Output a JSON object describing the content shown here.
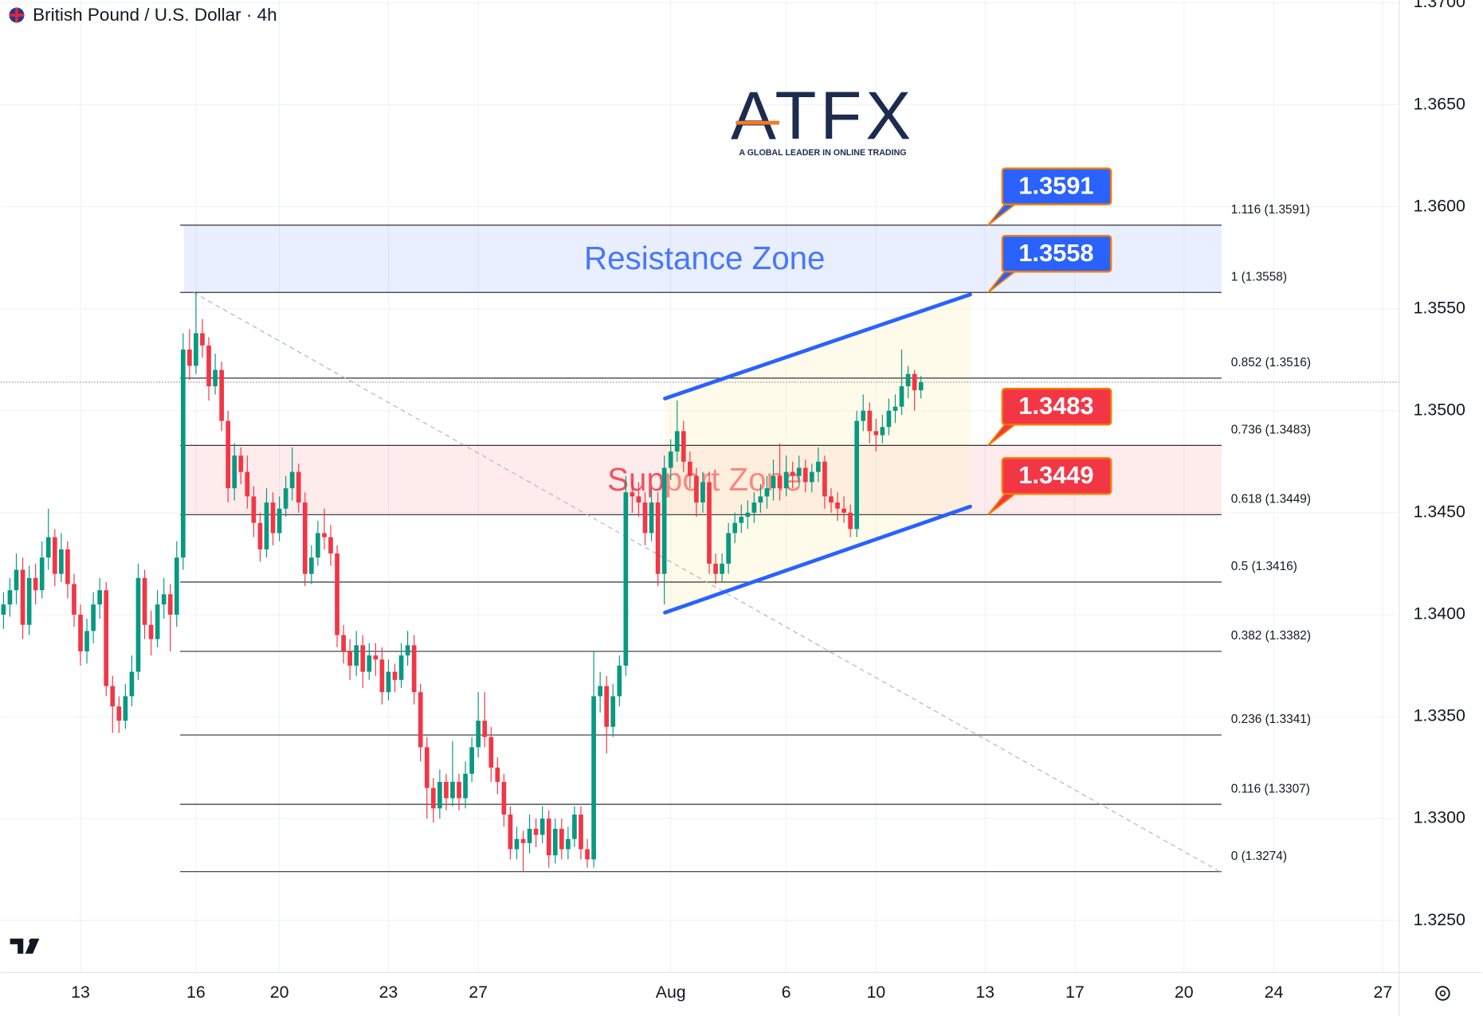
{
  "chart_data": {
    "type": "candlestick",
    "title": "British Pound / U.S. Dollar · 4h",
    "logo": {
      "name": "ATFX",
      "tagline": "A GLOBAL LEADER IN ONLINE TRADING"
    },
    "up_color": "#089981",
    "down_color": "#f23645",
    "grid": true,
    "ylim": [
      1.32245,
      1.37014
    ],
    "yticks": [
      {
        "value": 1.325,
        "label": "1.3250"
      },
      {
        "value": 1.33,
        "label": "1.3300"
      },
      {
        "value": 1.335,
        "label": "1.3350"
      },
      {
        "value": 1.34,
        "label": "1.3400"
      },
      {
        "value": 1.345,
        "label": "1.3450"
      },
      {
        "value": 1.35,
        "label": "1.3500"
      },
      {
        "value": 1.355,
        "label": "1.3550"
      },
      {
        "value": 1.36,
        "label": "1.3600"
      },
      {
        "value": 1.365,
        "label": "1.3650"
      },
      {
        "value": 1.37,
        "label": "1.3700"
      }
    ],
    "categories": [
      null,
      null,
      null,
      null,
      null,
      null,
      null,
      null,
      null,
      null,
      null,
      null,
      "13",
      null,
      null,
      null,
      null,
      null,
      null,
      null,
      null,
      null,
      null,
      null,
      null,
      null,
      null,
      null,
      null,
      null,
      "16",
      null,
      null,
      null,
      null,
      null,
      null,
      null,
      null,
      null,
      null,
      null,
      null,
      "20",
      null,
      null,
      null,
      null,
      null,
      null,
      null,
      null,
      null,
      null,
      null,
      null,
      null,
      null,
      null,
      null,
      "23",
      null,
      null,
      null,
      null,
      null,
      null,
      null,
      null,
      null,
      null,
      null,
      null,
      null,
      "27",
      null,
      null,
      null,
      null,
      null,
      null,
      null,
      null,
      null,
      null,
      null,
      null,
      null,
      null,
      null,
      null,
      null,
      null,
      null,
      null,
      null,
      null,
      null,
      null,
      null,
      null,
      null,
      null,
      null,
      "Aug",
      null,
      null,
      null,
      null,
      null,
      null,
      null,
      null,
      null,
      null,
      null,
      null,
      null,
      null,
      null,
      null,
      null,
      "6",
      null,
      null,
      null,
      null,
      null,
      null,
      null,
      null,
      null,
      null,
      null,
      null,
      null,
      "10",
      null,
      null,
      null,
      null,
      null,
      null,
      null,
      null,
      null,
      null,
      null,
      null,
      null,
      null,
      null,
      null,
      "13",
      null,
      null,
      null,
      null,
      null,
      null,
      null,
      null,
      null,
      null,
      null,
      null,
      null,
      "17",
      null,
      null,
      null,
      null,
      null,
      null,
      null,
      null,
      null,
      null,
      null,
      null,
      null,
      null,
      null,
      null,
      "20",
      null,
      null,
      null,
      null,
      null,
      null,
      null,
      null,
      null,
      null,
      null,
      null,
      null,
      "24",
      null,
      null,
      null,
      null,
      null,
      null,
      null,
      null,
      null,
      null,
      null,
      null,
      null,
      null,
      null,
      null,
      "27",
      null,
      null
    ],
    "ohlc": [
      [
        1.34,
        1.3411,
        1.3393,
        1.3405
      ],
      [
        1.3405,
        1.3418,
        1.3399,
        1.3412
      ],
      [
        1.3412,
        1.343,
        1.3405,
        1.3422
      ],
      [
        1.3422,
        1.3428,
        1.3388,
        1.3395
      ],
      [
        1.3395,
        1.3424,
        1.339,
        1.3418
      ],
      [
        1.3418,
        1.3425,
        1.3405,
        1.3412
      ],
      [
        1.3412,
        1.3436,
        1.3408,
        1.3428
      ],
      [
        1.3428,
        1.3452,
        1.3422,
        1.3438
      ],
      [
        1.3438,
        1.3442,
        1.3414,
        1.342
      ],
      [
        1.342,
        1.344,
        1.3416,
        1.3432
      ],
      [
        1.3432,
        1.3436,
        1.3408,
        1.3415
      ],
      [
        1.3415,
        1.342,
        1.3394,
        1.34
      ],
      [
        1.34,
        1.3405,
        1.3375,
        1.3382
      ],
      [
        1.3382,
        1.3398,
        1.3376,
        1.3392
      ],
      [
        1.3392,
        1.3411,
        1.3386,
        1.3405
      ],
      [
        1.3405,
        1.3418,
        1.3398,
        1.3412
      ],
      [
        1.3412,
        1.3416,
        1.336,
        1.3365
      ],
      [
        1.3365,
        1.337,
        1.3342,
        1.3355
      ],
      [
        1.3355,
        1.336,
        1.3342,
        1.3348
      ],
      [
        1.3348,
        1.3366,
        1.3344,
        1.336
      ],
      [
        1.336,
        1.338,
        1.3355,
        1.3372
      ],
      [
        1.3372,
        1.3425,
        1.3368,
        1.3418
      ],
      [
        1.3418,
        1.3422,
        1.3388,
        1.3395
      ],
      [
        1.3395,
        1.3402,
        1.338,
        1.3388
      ],
      [
        1.3388,
        1.3412,
        1.3384,
        1.3405
      ],
      [
        1.3405,
        1.3418,
        1.3398,
        1.341
      ],
      [
        1.341,
        1.3415,
        1.3382,
        1.34
      ],
      [
        1.34,
        1.3436,
        1.3394,
        1.3428
      ],
      [
        1.3428,
        1.3538,
        1.3422,
        1.353
      ],
      [
        1.353,
        1.354,
        1.3515,
        1.3522
      ],
      [
        1.3522,
        1.3558,
        1.3518,
        1.3538
      ],
      [
        1.3538,
        1.3545,
        1.3526,
        1.3532
      ],
      [
        1.3532,
        1.3536,
        1.3505,
        1.3512
      ],
      [
        1.3512,
        1.3528,
        1.3508,
        1.352
      ],
      [
        1.352,
        1.3524,
        1.349,
        1.3495
      ],
      [
        1.3495,
        1.35,
        1.3455,
        1.3462
      ],
      [
        1.3462,
        1.3484,
        1.3456,
        1.3478
      ],
      [
        1.3478,
        1.3482,
        1.3464,
        1.347
      ],
      [
        1.347,
        1.3478,
        1.3452,
        1.3458
      ],
      [
        1.3458,
        1.3463,
        1.3438,
        1.3445
      ],
      [
        1.3445,
        1.345,
        1.3426,
        1.3432
      ],
      [
        1.3432,
        1.3462,
        1.3428,
        1.3455
      ],
      [
        1.3455,
        1.346,
        1.3434,
        1.344
      ],
      [
        1.344,
        1.3458,
        1.3436,
        1.3452
      ],
      [
        1.3452,
        1.3468,
        1.3448,
        1.3462
      ],
      [
        1.3462,
        1.3482,
        1.3456,
        1.347
      ],
      [
        1.347,
        1.3474,
        1.345,
        1.3455
      ],
      [
        1.3455,
        1.346,
        1.3414,
        1.342
      ],
      [
        1.342,
        1.3434,
        1.3415,
        1.3428
      ],
      [
        1.3428,
        1.3446,
        1.3424,
        1.344
      ],
      [
        1.344,
        1.3452,
        1.3432,
        1.3438
      ],
      [
        1.3438,
        1.3444,
        1.3424,
        1.343
      ],
      [
        1.343,
        1.3434,
        1.3384,
        1.339
      ],
      [
        1.339,
        1.3395,
        1.3376,
        1.3382
      ],
      [
        1.3382,
        1.3388,
        1.3368,
        1.3375
      ],
      [
        1.3375,
        1.3392,
        1.337,
        1.3385
      ],
      [
        1.3385,
        1.339,
        1.3364,
        1.3372
      ],
      [
        1.3372,
        1.3386,
        1.3368,
        1.338
      ],
      [
        1.338,
        1.3386,
        1.337,
        1.3378
      ],
      [
        1.3378,
        1.3384,
        1.3356,
        1.3362
      ],
      [
        1.3362,
        1.3378,
        1.3358,
        1.3372
      ],
      [
        1.3372,
        1.3376,
        1.3362,
        1.3368
      ],
      [
        1.3368,
        1.3386,
        1.3364,
        1.338
      ],
      [
        1.338,
        1.3392,
        1.3375,
        1.3385
      ],
      [
        1.3385,
        1.339,
        1.3356,
        1.3362
      ],
      [
        1.3362,
        1.3366,
        1.3328,
        1.3335
      ],
      [
        1.3335,
        1.334,
        1.33,
        1.3315
      ],
      [
        1.3315,
        1.332,
        1.3298,
        1.3305
      ],
      [
        1.3305,
        1.3324,
        1.33,
        1.3318
      ],
      [
        1.3318,
        1.3322,
        1.3304,
        1.331
      ],
      [
        1.331,
        1.3338,
        1.3306,
        1.3318
      ],
      [
        1.3318,
        1.3322,
        1.3304,
        1.331
      ],
      [
        1.331,
        1.3328,
        1.3305,
        1.3322
      ],
      [
        1.3322,
        1.334,
        1.3318,
        1.3335
      ],
      [
        1.3335,
        1.3362,
        1.333,
        1.3348
      ],
      [
        1.3348,
        1.3362,
        1.3335,
        1.334
      ],
      [
        1.334,
        1.3345,
        1.3318,
        1.3325
      ],
      [
        1.3325,
        1.333,
        1.3312,
        1.3318
      ],
      [
        1.3318,
        1.3322,
        1.3296,
        1.3302
      ],
      [
        1.3302,
        1.3306,
        1.328,
        1.3285
      ],
      [
        1.3285,
        1.3296,
        1.328,
        1.329
      ],
      [
        1.329,
        1.3294,
        1.3274,
        1.3288
      ],
      [
        1.3288,
        1.3302,
        1.3283,
        1.3295
      ],
      [
        1.3295,
        1.33,
        1.3286,
        1.3292
      ],
      [
        1.3292,
        1.3306,
        1.3288,
        1.33
      ],
      [
        1.33,
        1.3304,
        1.3276,
        1.3282
      ],
      [
        1.3282,
        1.33,
        1.3278,
        1.3295
      ],
      [
        1.3295,
        1.33,
        1.328,
        1.3285
      ],
      [
        1.3285,
        1.3296,
        1.328,
        1.329
      ],
      [
        1.329,
        1.3306,
        1.3286,
        1.3302
      ],
      [
        1.3302,
        1.3306,
        1.328,
        1.3285
      ],
      [
        1.3285,
        1.329,
        1.3276,
        1.328
      ],
      [
        1.328,
        1.3382,
        1.3276,
        1.336
      ],
      [
        1.336,
        1.3372,
        1.3352,
        1.3365
      ],
      [
        1.3365,
        1.337,
        1.3332,
        1.3345
      ],
      [
        1.3345,
        1.3366,
        1.334,
        1.336
      ],
      [
        1.336,
        1.338,
        1.3355,
        1.3375
      ],
      [
        1.3375,
        1.3468,
        1.337,
        1.346
      ],
      [
        1.346,
        1.3466,
        1.345,
        1.3458
      ],
      [
        1.3458,
        1.3465,
        1.3448,
        1.3455
      ],
      [
        1.3455,
        1.346,
        1.3434,
        1.344
      ],
      [
        1.344,
        1.3462,
        1.3436,
        1.3455
      ],
      [
        1.3455,
        1.346,
        1.3414,
        1.342
      ],
      [
        1.342,
        1.3478,
        1.3405,
        1.3472
      ],
      [
        1.3472,
        1.3486,
        1.3466,
        1.348
      ],
      [
        1.348,
        1.3505,
        1.3475,
        1.349
      ],
      [
        1.349,
        1.3495,
        1.347,
        1.3475
      ],
      [
        1.3475,
        1.348,
        1.3462,
        1.3468
      ],
      [
        1.3468,
        1.3472,
        1.3448,
        1.3455
      ],
      [
        1.3455,
        1.347,
        1.345,
        1.3465
      ],
      [
        1.3465,
        1.347,
        1.342,
        1.3425
      ],
      [
        1.3425,
        1.343,
        1.3415,
        1.342
      ],
      [
        1.342,
        1.343,
        1.3416,
        1.3425
      ],
      [
        1.3425,
        1.3445,
        1.342,
        1.344
      ],
      [
        1.344,
        1.345,
        1.3435,
        1.3445
      ],
      [
        1.3445,
        1.3454,
        1.344,
        1.3448
      ],
      [
        1.3448,
        1.3456,
        1.3442,
        1.345
      ],
      [
        1.345,
        1.346,
        1.3445,
        1.3455
      ],
      [
        1.3455,
        1.3464,
        1.345,
        1.3458
      ],
      [
        1.3458,
        1.3468,
        1.3452,
        1.3462
      ],
      [
        1.3462,
        1.3476,
        1.3456,
        1.3468
      ],
      [
        1.3468,
        1.3484,
        1.3456,
        1.3462
      ],
      [
        1.3462,
        1.3478,
        1.3458,
        1.347
      ],
      [
        1.347,
        1.3475,
        1.3462,
        1.3468
      ],
      [
        1.3468,
        1.3478,
        1.3463,
        1.3472
      ],
      [
        1.3472,
        1.3476,
        1.346,
        1.3465
      ],
      [
        1.3465,
        1.3474,
        1.346,
        1.347
      ],
      [
        1.347,
        1.3482,
        1.3465,
        1.3475
      ],
      [
        1.3475,
        1.3478,
        1.3452,
        1.3458
      ],
      [
        1.3458,
        1.3462,
        1.345,
        1.3455
      ],
      [
        1.3455,
        1.346,
        1.3446,
        1.3452
      ],
      [
        1.3452,
        1.3458,
        1.3445,
        1.345
      ],
      [
        1.345,
        1.3454,
        1.3438,
        1.3442
      ],
      [
        1.3442,
        1.35,
        1.3438,
        1.3495
      ],
      [
        1.3495,
        1.3508,
        1.349,
        1.35
      ],
      [
        1.35,
        1.3504,
        1.3484,
        1.349
      ],
      [
        1.349,
        1.3496,
        1.348,
        1.3488
      ],
      [
        1.3488,
        1.3498,
        1.3484,
        1.3492
      ],
      [
        1.3492,
        1.3506,
        1.3488,
        1.35
      ],
      [
        1.35,
        1.3508,
        1.3494,
        1.3502
      ],
      [
        1.3502,
        1.353,
        1.3498,
        1.3512
      ],
      [
        1.3512,
        1.3522,
        1.3506,
        1.3518
      ],
      [
        1.3518,
        1.352,
        1.35,
        1.351
      ],
      [
        1.351,
        1.3517,
        1.3506,
        1.3514
      ],
      null,
      null,
      null,
      null,
      null,
      null,
      null,
      null,
      null,
      null,
      null,
      null,
      null,
      null,
      null,
      null,
      null,
      null,
      null,
      null,
      null,
      null,
      null,
      null,
      null,
      null,
      null,
      null,
      null,
      null,
      null,
      null,
      null,
      null,
      null,
      null,
      null,
      null,
      null,
      null,
      null,
      null,
      null,
      null,
      null,
      null,
      null,
      null,
      null,
      null,
      null,
      null,
      null,
      null,
      null,
      null,
      null,
      null,
      null,
      null,
      null,
      null,
      null,
      null,
      null,
      null,
      null,
      null,
      null,
      null,
      null,
      null,
      null,
      null
    ],
    "fib_levels": [
      {
        "value": 1.3591,
        "label": "1.116 (1.3591)"
      },
      {
        "value": 1.3558,
        "label": "1 (1.3558)"
      },
      {
        "value": 1.3516,
        "label": "0.852 (1.3516)"
      },
      {
        "value": 1.3483,
        "label": "0.736 (1.3483)"
      },
      {
        "value": 1.3449,
        "label": "0.618 (1.3449)"
      },
      {
        "value": 1.3416,
        "label": "0.5 (1.3416)"
      },
      {
        "value": 1.3382,
        "label": "0.382 (1.3382)"
      },
      {
        "value": 1.3341,
        "label": "0.236 (1.3341)"
      },
      {
        "value": 1.3307,
        "label": "0.116 (1.3307)"
      },
      {
        "value": 1.3274,
        "label": "0 (1.3274)"
      }
    ],
    "fib_trend": [
      1.3558,
      1.3274
    ],
    "zones": [
      {
        "label": "Resistance Zone",
        "range": [
          1.3558,
          1.3591
        ],
        "color": "#2962ff"
      },
      {
        "label": "Support Zone",
        "range": [
          1.3449,
          1.3483
        ],
        "color": "#f23645"
      }
    ],
    "channel": {
      "upper": [
        1.3506,
        1.3557
      ],
      "lower": [
        1.3401,
        1.3453
      ],
      "color": "#2962ff"
    },
    "callouts": [
      {
        "value": 1.3591,
        "color": "#2962ff"
      },
      {
        "value": 1.3558,
        "color": "#2962ff"
      },
      {
        "value": 1.3483,
        "color": "#f23645"
      },
      {
        "value": 1.3449,
        "color": "#f23645"
      }
    ]
  }
}
